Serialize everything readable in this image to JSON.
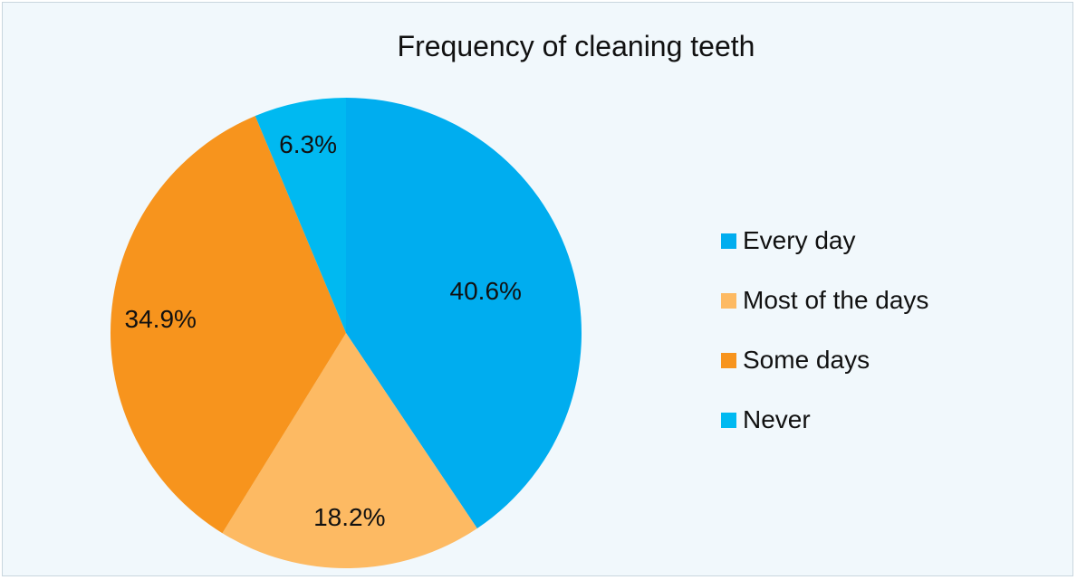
{
  "chart_data": {
    "type": "pie",
    "title": "Frequency of cleaning teeth",
    "slices": [
      {
        "label": "Every day",
        "value": 40.6,
        "display": "40.6%",
        "color": "#00adef"
      },
      {
        "label": "Most of the days",
        "value": 18.2,
        "display": "18.2%",
        "color": "#fdba63"
      },
      {
        "label": "Some days",
        "value": 34.9,
        "display": "34.9%",
        "color": "#f7941d"
      },
      {
        "label": "Never",
        "value": 6.3,
        "display": "6.3%",
        "color": "#00b9f1"
      }
    ],
    "legend_position": "right"
  }
}
